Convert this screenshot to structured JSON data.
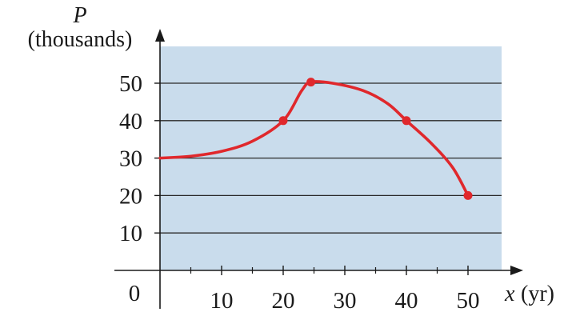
{
  "chart_data": {
    "type": "line",
    "title": "",
    "y_axis": {
      "variable": "P",
      "unit": "(thousands)",
      "ticks": [
        10,
        20,
        30,
        40,
        50
      ],
      "range": [
        0,
        62
      ]
    },
    "x_axis": {
      "variable": "x",
      "unit": "(yr)",
      "ticks": [
        10,
        20,
        30,
        40,
        50
      ],
      "minor_ticks": [
        5,
        15,
        25,
        35,
        45
      ],
      "origin_label": "0",
      "range": [
        0,
        55
      ]
    },
    "grid": true,
    "background_color": "#c9dcec",
    "series": [
      {
        "color": "#e0282c",
        "curve_points": [
          {
            "x": 0,
            "y": 30
          },
          {
            "x": 5,
            "y": 30.5
          },
          {
            "x": 10,
            "y": 31.8
          },
          {
            "x": 15,
            "y": 34.5
          },
          {
            "x": 20,
            "y": 40
          },
          {
            "x": 23,
            "y": 48
          },
          {
            "x": 24.5,
            "y": 50.3
          },
          {
            "x": 28,
            "y": 50
          },
          {
            "x": 33,
            "y": 48
          },
          {
            "x": 37,
            "y": 44.5
          },
          {
            "x": 40,
            "y": 40
          },
          {
            "x": 44,
            "y": 34
          },
          {
            "x": 47.5,
            "y": 27.5
          },
          {
            "x": 50,
            "y": 20
          }
        ],
        "marked_points": [
          {
            "x": 20,
            "y": 40
          },
          {
            "x": 24.5,
            "y": 50.3
          },
          {
            "x": 40,
            "y": 40
          },
          {
            "x": 50,
            "y": 20
          }
        ]
      }
    ]
  }
}
